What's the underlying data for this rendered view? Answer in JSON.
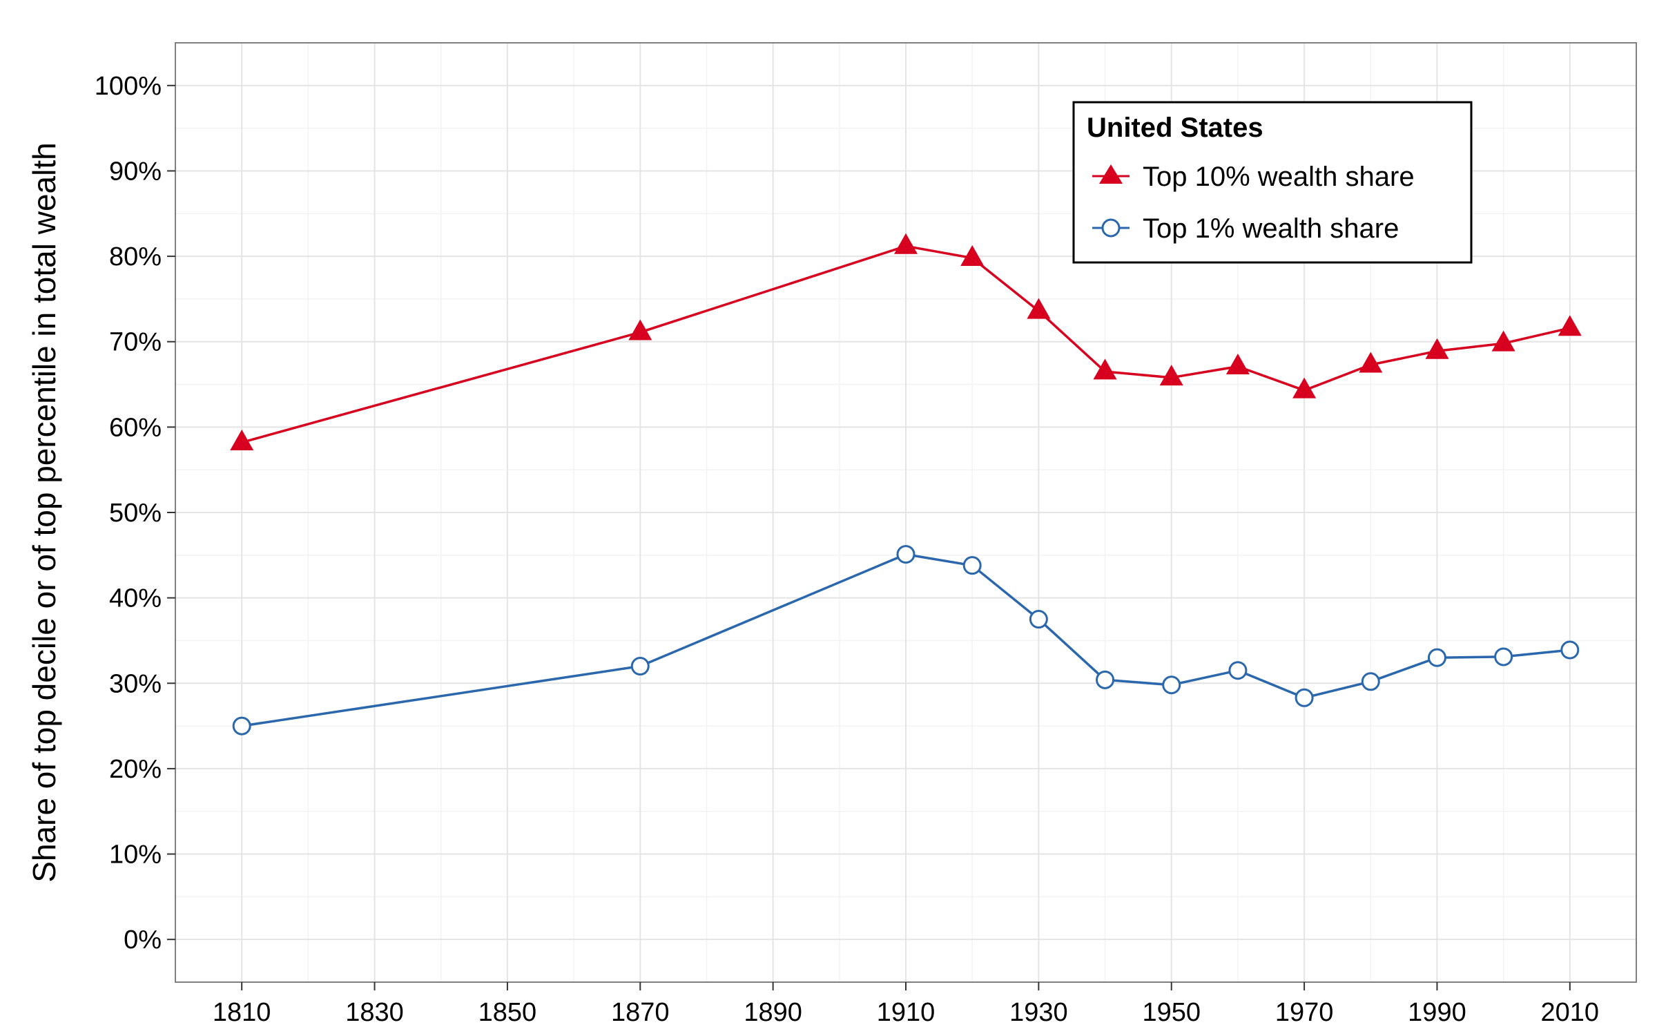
{
  "chart_data": {
    "type": "line",
    "xlabel": "",
    "ylabel": "Share of top decile or of top percentile in total wealth",
    "xlim": [
      1800,
      2020
    ],
    "ylim": [
      -5,
      105
    ],
    "x_ticks": [
      1810,
      1830,
      1850,
      1870,
      1890,
      1910,
      1930,
      1950,
      1970,
      1990,
      2010
    ],
    "x_tick_labels": [
      "1810",
      "1830",
      "1850",
      "1870",
      "1890",
      "1910",
      "1930",
      "1950",
      "1970",
      "1990",
      "2010"
    ],
    "y_ticks": [
      0,
      10,
      20,
      30,
      40,
      50,
      60,
      70,
      80,
      90,
      100
    ],
    "y_tick_labels": [
      "0%",
      "10%",
      "20%",
      "30%",
      "40%",
      "50%",
      "60%",
      "70%",
      "80%",
      "90%",
      "100%"
    ],
    "grid": true,
    "legend": {
      "title": "United States",
      "position": "top-right"
    },
    "x": [
      1810,
      1870,
      1910,
      1920,
      1930,
      1940,
      1950,
      1960,
      1970,
      1980,
      1990,
      2000,
      2010
    ],
    "series": [
      {
        "name": "Top 10% wealth share",
        "marker": "triangle",
        "color": "#d7001f",
        "values": [
          58.2,
          71.1,
          81.2,
          79.8,
          73.6,
          66.5,
          65.8,
          67.1,
          64.3,
          67.3,
          68.9,
          69.8,
          71.6
        ]
      },
      {
        "name": "Top 1% wealth share",
        "marker": "circle-open",
        "color": "#2b67ad",
        "values": [
          25.0,
          32.0,
          45.1,
          43.8,
          37.5,
          30.4,
          29.8,
          31.5,
          28.3,
          30.2,
          33.0,
          33.1,
          33.9
        ]
      }
    ]
  }
}
